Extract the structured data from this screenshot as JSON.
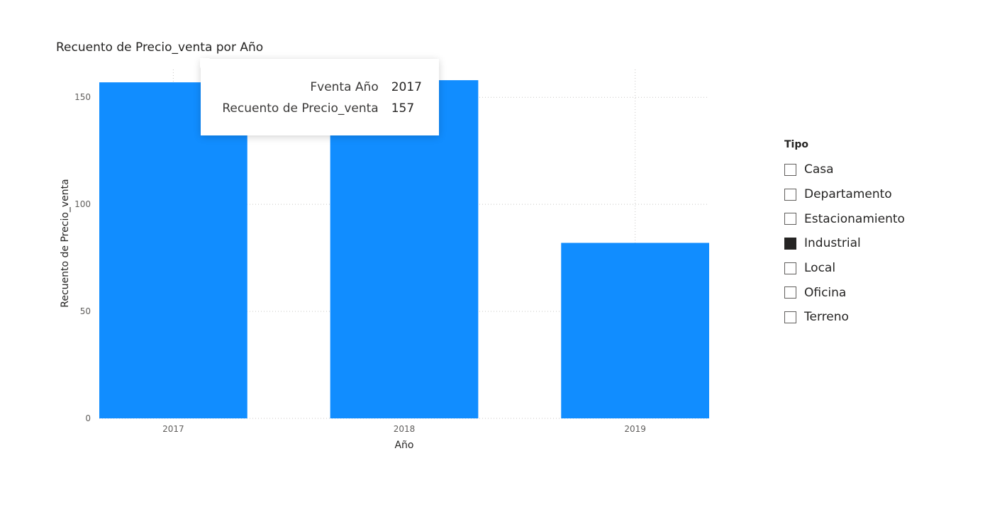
{
  "chart_data": {
    "type": "bar",
    "title": "Recuento de Precio_venta por Año",
    "xlabel": "Año",
    "ylabel": "Recuento de Precio_venta",
    "categories": [
      "2017",
      "2018",
      "2019"
    ],
    "values": [
      157,
      158,
      82
    ],
    "ylim": [
      0,
      163
    ],
    "yticks": [
      0,
      50,
      100,
      150
    ],
    "grid": true,
    "bar_color": "#118DFF"
  },
  "tooltip": {
    "rows": [
      {
        "label": "Fventa Año",
        "value": "2017"
      },
      {
        "label": "Recuento de Precio_venta",
        "value": "157"
      }
    ]
  },
  "legend": {
    "title": "Tipo",
    "items": [
      {
        "label": "Casa",
        "checked": false
      },
      {
        "label": "Departamento",
        "checked": false
      },
      {
        "label": "Estacionamiento",
        "checked": false
      },
      {
        "label": "Industrial",
        "checked": true
      },
      {
        "label": "Local",
        "checked": false
      },
      {
        "label": "Oficina",
        "checked": false
      },
      {
        "label": "Terreno",
        "checked": false
      }
    ]
  }
}
